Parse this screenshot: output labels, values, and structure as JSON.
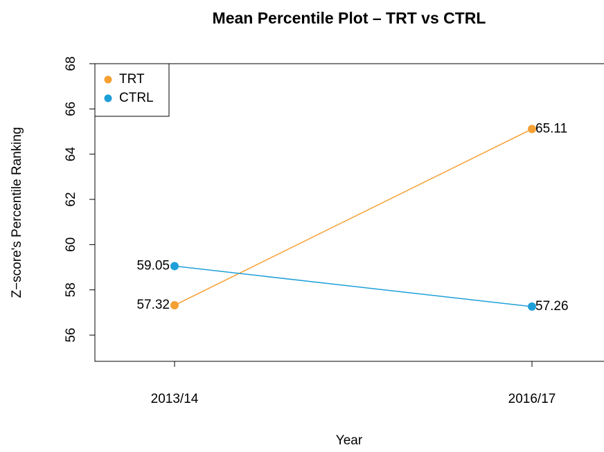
{
  "chart_data": {
    "type": "line",
    "title": "Mean Percentile Plot – TRT vs CTRL",
    "x_label": "Year",
    "y_label": "Z−score's Percentile Ranking",
    "categories": [
      "2013/14",
      "2016/17"
    ],
    "series": [
      {
        "name": "TRT",
        "color": "#f5a033",
        "values": [
          57.32,
          65.11
        ]
      },
      {
        "name": "CTRL",
        "color": "#1e9fd8",
        "values": [
          59.05,
          57.26
        ]
      }
    ],
    "ylim": [
      54.84,
      68
    ],
    "yticks": [
      56,
      58,
      60,
      62,
      64,
      66,
      68
    ],
    "legend": "top-left",
    "data_labels": true
  }
}
